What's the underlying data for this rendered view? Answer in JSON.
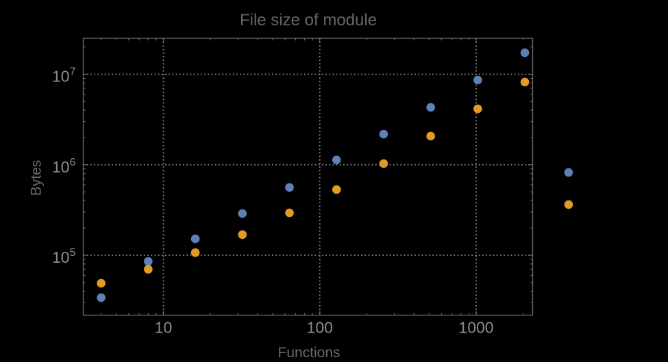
{
  "style": {
    "background": "#000000",
    "frame_color": "#6e6e6e",
    "grid_color": "#8a8a8a",
    "title_color": "#656565",
    "axis_label_color": "#6a6a6a",
    "tick_label_color": "#8c8c8c",
    "point_blue": "#5E81B5",
    "point_orange": "#E19C24"
  },
  "chart_data": {
    "type": "scatter",
    "title": "File size of module",
    "xlabel": "Functions",
    "ylabel": "Bytes",
    "x_scale": "log",
    "y_scale": "log",
    "xlim": [
      3.1,
      2300
    ],
    "ylim": [
      21800,
      24900000
    ],
    "grid": "major, dotted",
    "legend": "none",
    "x_major_ticks": [
      10,
      100,
      1000
    ],
    "x_tick_labels": [
      "10",
      "100",
      "1000"
    ],
    "x_minor_ticks": [
      4,
      5,
      6,
      7,
      8,
      9,
      20,
      30,
      40,
      50,
      60,
      70,
      80,
      90,
      200,
      300,
      400,
      500,
      600,
      700,
      800,
      900,
      2000
    ],
    "y_major_ticks": [
      100000,
      1000000,
      10000000
    ],
    "y_tick_labels": [
      {
        "base": "10",
        "exponent": "5"
      },
      {
        "base": "10",
        "exponent": "6"
      },
      {
        "base": "10",
        "exponent": "7"
      }
    ],
    "y_minor_ticks": [
      30000,
      40000,
      50000,
      60000,
      70000,
      80000,
      90000,
      200000,
      300000,
      400000,
      500000,
      600000,
      700000,
      800000,
      900000,
      2000000,
      3000000,
      4000000,
      5000000,
      6000000,
      7000000,
      8000000,
      9000000,
      20000000
    ],
    "x": [
      4,
      8,
      16,
      32,
      64,
      128,
      256,
      512,
      1024,
      2048,
      3900
    ],
    "series": [
      {
        "name": "blue",
        "color": "#5E81B5",
        "values": [
          34000,
          85500,
          152000,
          289000,
          561000,
          1130000,
          2180000,
          4300000,
          8630000,
          17300000,
          822000
        ]
      },
      {
        "name": "orange",
        "color": "#E19C24",
        "values": [
          49000,
          70000,
          107000,
          169000,
          294000,
          532000,
          1030000,
          2070000,
          4150000,
          8190000,
          363000
        ]
      }
    ],
    "note_points_outside_frame_x": 3900
  }
}
